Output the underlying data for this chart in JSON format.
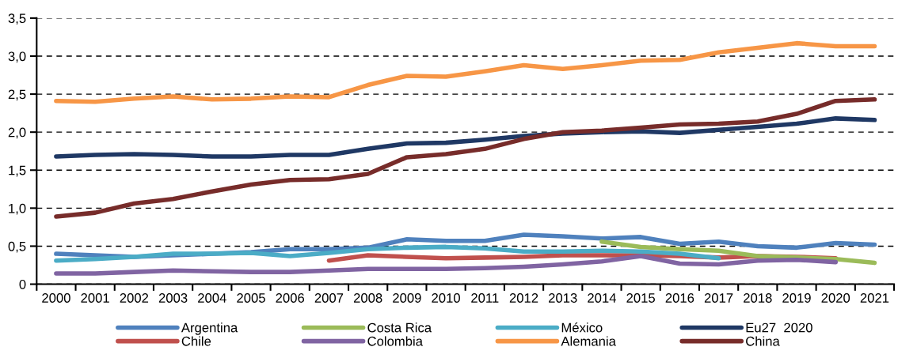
{
  "chart_data": {
    "type": "line",
    "categories": [
      "2000",
      "2001",
      "2002",
      "2003",
      "2004",
      "2005",
      "2006",
      "2007",
      "2008",
      "2009",
      "2010",
      "2011",
      "2012",
      "2013",
      "2014",
      "2015",
      "2016",
      "2017",
      "2018",
      "2019",
      "2020",
      "2021"
    ],
    "ylim": [
      0,
      3.5
    ],
    "yticks": [
      {
        "value": 0,
        "label": "0"
      },
      {
        "value": 0.5,
        "label": "0,5"
      },
      {
        "value": 1,
        "label": "1,0"
      },
      {
        "value": 1.5,
        "label": "1,5"
      },
      {
        "value": 2,
        "label": "2,0"
      },
      {
        "value": 2.5,
        "label": "2,5"
      },
      {
        "value": 3,
        "label": "3,0"
      },
      {
        "value": 3.5,
        "label": "3,5"
      }
    ],
    "grid": "y",
    "legend": "bottom",
    "marker": "none",
    "line_style": "solid",
    "series": [
      {
        "name": "Argentina",
        "color": "#4f81bd",
        "values": [
          0.4,
          0.38,
          0.36,
          0.38,
          0.4,
          0.42,
          0.46,
          0.46,
          0.48,
          0.59,
          0.57,
          0.57,
          0.65,
          0.63,
          0.6,
          0.62,
          0.53,
          0.56,
          0.5,
          0.48,
          0.54,
          0.52
        ]
      },
      {
        "name": "Chile",
        "color": "#c0504d",
        "values": [
          null,
          null,
          null,
          null,
          null,
          null,
          null,
          0.31,
          0.38,
          0.36,
          0.34,
          0.35,
          0.36,
          0.38,
          0.38,
          0.38,
          0.37,
          0.35,
          0.37,
          0.36,
          0.34,
          null
        ]
      },
      {
        "name": "Costa Rica",
        "color": "#9bbb59",
        "values": [
          null,
          null,
          null,
          null,
          null,
          null,
          null,
          null,
          null,
          null,
          null,
          null,
          null,
          null,
          0.56,
          0.49,
          0.46,
          0.44,
          0.37,
          0.35,
          0.33,
          0.28
        ]
      },
      {
        "name": "Colombia",
        "color": "#8064a2",
        "values": [
          0.14,
          0.14,
          0.16,
          0.18,
          0.17,
          0.16,
          0.16,
          0.18,
          0.2,
          0.2,
          0.2,
          0.21,
          0.23,
          0.26,
          0.3,
          0.37,
          0.27,
          0.26,
          0.31,
          0.32,
          0.29,
          null
        ]
      },
      {
        "name": "México",
        "color": "#4bacc6",
        "values": [
          0.31,
          0.33,
          0.36,
          0.4,
          0.4,
          0.41,
          0.37,
          0.41,
          0.46,
          0.48,
          0.49,
          0.47,
          0.43,
          0.43,
          0.44,
          0.43,
          0.4,
          0.34,
          null,
          null,
          null,
          null
        ]
      },
      {
        "name": "Alemania",
        "color": "#f79646",
        "values": [
          2.41,
          2.4,
          2.44,
          2.47,
          2.43,
          2.44,
          2.47,
          2.46,
          2.62,
          2.74,
          2.73,
          2.8,
          2.88,
          2.83,
          2.88,
          2.94,
          2.95,
          3.05,
          3.11,
          3.17,
          3.13,
          3.13
        ]
      },
      {
        "name": "Eu27  2020",
        "color": "#1f3864",
        "values": [
          1.68,
          1.7,
          1.71,
          1.7,
          1.68,
          1.68,
          1.7,
          1.7,
          1.78,
          1.85,
          1.86,
          1.9,
          1.95,
          1.98,
          2.0,
          2.01,
          1.99,
          2.03,
          2.07,
          2.11,
          2.18,
          2.16
        ]
      },
      {
        "name": "China",
        "color": "#772c2a",
        "values": [
          0.89,
          0.94,
          1.06,
          1.12,
          1.22,
          1.31,
          1.37,
          1.38,
          1.45,
          1.67,
          1.71,
          1.78,
          1.91,
          2.0,
          2.02,
          2.06,
          2.1,
          2.11,
          2.14,
          2.24,
          2.41,
          2.43
        ]
      }
    ]
  }
}
